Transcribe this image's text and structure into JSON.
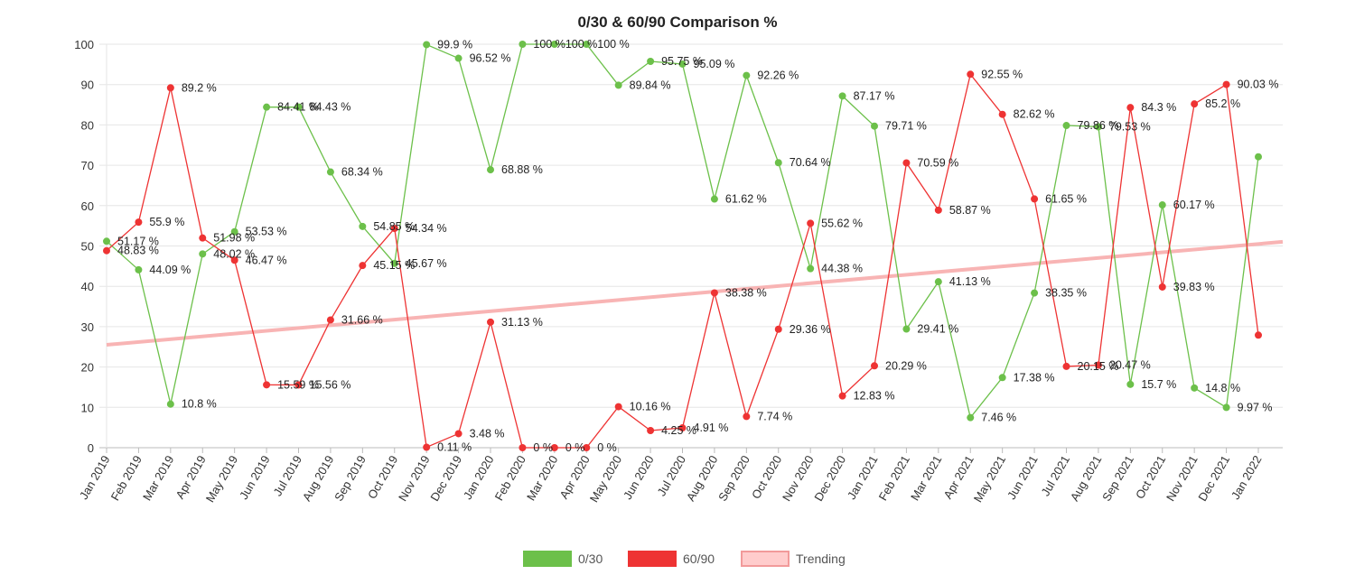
{
  "chart_data": {
    "type": "line",
    "title": "0/30 & 60/90 Comparison %",
    "xlabel": "",
    "ylabel": "",
    "ylim": [
      0,
      100
    ],
    "yticks": [
      0,
      10,
      20,
      30,
      40,
      50,
      60,
      70,
      80,
      90,
      100
    ],
    "grid": true,
    "legend_placement": "bottom",
    "value_suffix": " %",
    "categories": [
      "Jan 2019",
      "Feb 2019",
      "Mar 2019",
      "Apr 2019",
      "May 2019",
      "Jun 2019",
      "Jul 2019",
      "Aug 2019",
      "Sep 2019",
      "Oct 2019",
      "Nov 2019",
      "Dec 2019",
      "Jan 2020",
      "Feb 2020",
      "Mar 2020",
      "Apr 2020",
      "May 2020",
      "Jun 2020",
      "Jul 2020",
      "Aug 2020",
      "Sep 2020",
      "Oct 2020",
      "Nov 2020",
      "Dec 2020",
      "Jan 2021",
      "Feb 2021",
      "Mar 2021",
      "Apr 2021",
      "May 2021",
      "Jun 2021",
      "Jul 2021",
      "Aug 2021",
      "Sep 2021",
      "Oct 2021",
      "Nov 2021",
      "Dec 2021",
      "Jan 2022"
    ],
    "series": [
      {
        "name": "0/30",
        "color": "#6cc04a",
        "values": [
          51.17,
          44.09,
          10.8,
          48.02,
          53.53,
          84.41,
          84.43,
          68.34,
          54.85,
          45.67,
          99.9,
          96.52,
          68.88,
          100,
          100,
          100,
          89.84,
          95.75,
          95.09,
          61.62,
          92.26,
          70.64,
          44.38,
          87.17,
          79.71,
          29.41,
          41.13,
          7.46,
          17.38,
          38.35,
          79.86,
          79.53,
          15.7,
          60.17,
          14.8,
          9.97,
          72.1
        ]
      },
      {
        "name": "60/90",
        "color": "#ee3333",
        "values": [
          48.83,
          55.9,
          89.2,
          51.98,
          46.47,
          15.59,
          15.56,
          31.66,
          45.15,
          54.34,
          0.11,
          3.48,
          31.13,
          0,
          0,
          0,
          10.16,
          4.25,
          4.91,
          38.38,
          7.74,
          29.36,
          55.62,
          12.83,
          20.29,
          70.59,
          58.87,
          92.55,
          82.62,
          61.65,
          20.15,
          20.47,
          84.3,
          39.83,
          85.2,
          90.03,
          27.9
        ]
      },
      {
        "name": "Trending",
        "color": "#f8b4b4",
        "type": "trendline",
        "start": 25.5,
        "end": 50.5
      }
    ]
  }
}
